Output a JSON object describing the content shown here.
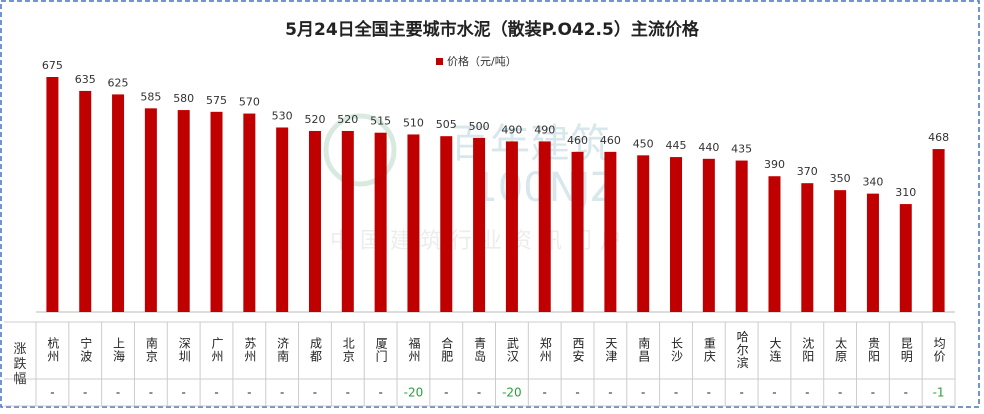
{
  "chart_data": {
    "type": "bar",
    "title": "5月24日全国主要城市水泥（散装P.O42.5）主流价格",
    "categories": [
      "杭州",
      "宁波",
      "上海",
      "南京",
      "深圳",
      "广州",
      "苏州",
      "济南",
      "成都",
      "北京",
      "厦门",
      "福州",
      "合肥",
      "青岛",
      "武汉",
      "郑州",
      "西安",
      "天津",
      "南昌",
      "长沙",
      "重庆",
      "哈尔滨",
      "大连",
      "沈阳",
      "太原",
      "贵阳",
      "昆明",
      "均价"
    ],
    "series": [
      {
        "name": "价格（元/吨）",
        "color": "#c00000",
        "values": [
          675,
          635,
          625,
          585,
          580,
          575,
          570,
          530,
          520,
          520,
          515,
          510,
          505,
          500,
          490,
          490,
          460,
          460,
          450,
          445,
          440,
          435,
          390,
          370,
          350,
          340,
          310,
          468
        ]
      }
    ],
    "legend": "top",
    "table": {
      "row_header": "涨跌幅",
      "changes": [
        "-",
        "-",
        "-",
        "-",
        "-",
        "-",
        "-",
        "-",
        "-",
        "-",
        "-",
        "-20",
        "-",
        "-",
        "-20",
        "-",
        "-",
        "-",
        "-",
        "-",
        "-",
        "-",
        "-",
        "-",
        "-",
        "-",
        "-",
        "-1"
      ]
    },
    "watermark": {
      "brand": "百年建筑",
      "code": "100NJZ",
      "slogan": "中国建筑行业资讯门户"
    }
  }
}
